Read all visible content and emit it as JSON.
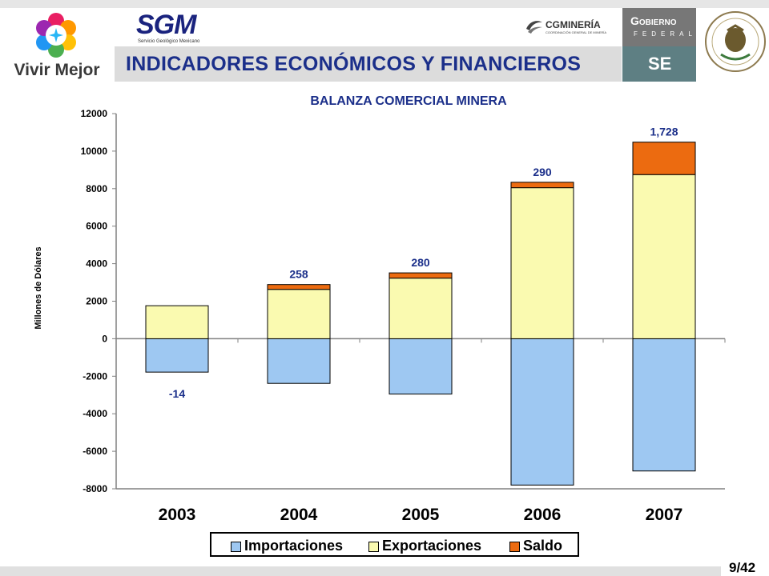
{
  "header": {
    "vivir_mejor": "Vivir Mejor",
    "sgm_logo": "SGM",
    "sgm_sub": "Servicio Geológico Mexicano",
    "cgm_logo": "CGMINERÍA",
    "cgm_sub": "COORDINACIÓN GENERAL DE MINERÍA",
    "gobierno": "Gobierno",
    "federal": "FEDERAL",
    "se": "SE",
    "title": "INDICADORES ECONÓMICOS Y FINANCIEROS"
  },
  "chart_data": {
    "type": "bar",
    "title": "BALANZA COMERCIAL MINERA",
    "ylabel": "Millones de Dólares",
    "ylim": [
      -8000,
      12000
    ],
    "yticks": [
      "12000",
      "10000",
      "8000",
      "6000",
      "4000",
      "2000",
      "0",
      "-2000",
      "-4000",
      "-6000",
      "-8000"
    ],
    "categories": [
      "2003",
      "2004",
      "2005",
      "2006",
      "2007"
    ],
    "series": [
      {
        "name": "Importaciones",
        "values": [
          -1780,
          -2380,
          -2950,
          -7800,
          -7050
        ]
      },
      {
        "name": "Exportaciones",
        "values": [
          1760,
          2630,
          3230,
          8050,
          8750
        ]
      },
      {
        "name": "Saldo",
        "values": [
          -14,
          258,
          280,
          290,
          1728
        ]
      }
    ],
    "data_labels": [
      "-14",
      "258",
      "280",
      "290",
      "1,728"
    ],
    "grid": false,
    "legend_position": "bottom"
  },
  "colors": {
    "importaciones_fill": "#9ec8f2",
    "exportaciones_fill": "#fafab0",
    "saldo_fill": "#ec6b10",
    "label_blue": "#1b2f8a"
  },
  "legend": {
    "items": [
      "Importaciones",
      "Exportaciones",
      "Saldo"
    ]
  },
  "footer": {
    "page": "9/42"
  }
}
